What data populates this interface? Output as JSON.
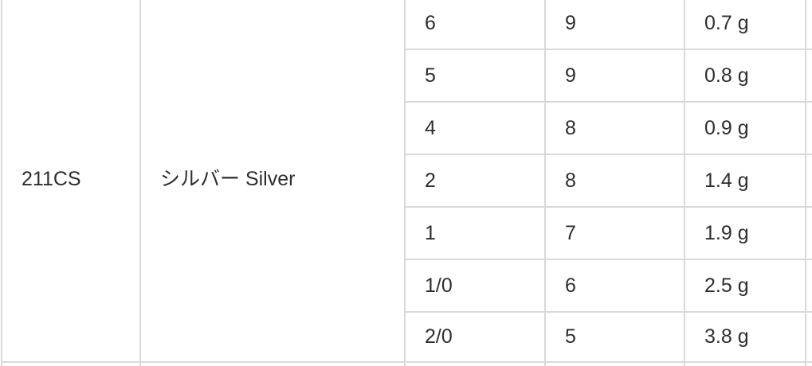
{
  "table": {
    "model": "211CS",
    "color": "シルバー Silver",
    "rows": [
      {
        "size": "6",
        "count": "9",
        "weight": "0.7 g"
      },
      {
        "size": "5",
        "count": "9",
        "weight": "0.8 g"
      },
      {
        "size": "4",
        "count": "8",
        "weight": "0.9 g"
      },
      {
        "size": "2",
        "count": "8",
        "weight": "1.4 g"
      },
      {
        "size": "1",
        "count": "7",
        "weight": "1.9 g"
      },
      {
        "size": "1/0",
        "count": "6",
        "weight": "2.5 g"
      },
      {
        "size": "2/0",
        "count": "5",
        "weight": "3.8 g"
      }
    ]
  }
}
